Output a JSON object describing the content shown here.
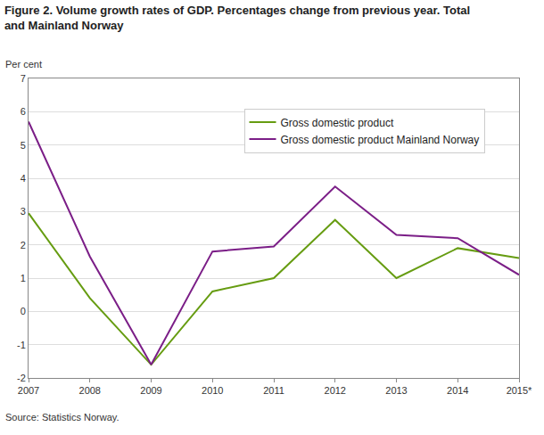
{
  "chart_data": {
    "type": "line",
    "title": "Figure 2. Volume growth rates of GDP. Percentages change from previous year. Total and Mainland Norway",
    "ylabel": "Per cent",
    "source": "Source: Statistics Norway.",
    "categories": [
      "2007",
      "2008",
      "2009",
      "2010",
      "2011",
      "2012",
      "2013",
      "2014",
      "2015*"
    ],
    "series": [
      {
        "name": "Gross domestic product",
        "color": "#669c11",
        "values": [
          2.95,
          0.4,
          -1.6,
          0.6,
          1.0,
          2.75,
          1.0,
          1.9,
          1.6
        ]
      },
      {
        "name": "Gross domestic product Mainland Norway",
        "color": "#7b1e87",
        "values": [
          5.7,
          1.65,
          -1.6,
          1.8,
          1.95,
          3.75,
          2.3,
          2.2,
          1.1
        ]
      }
    ],
    "ylim": [
      -2,
      7
    ],
    "yticks": [
      -2,
      -1,
      0,
      1,
      2,
      3,
      4,
      5,
      6,
      7
    ],
    "grid": true,
    "legend": "upper right"
  }
}
